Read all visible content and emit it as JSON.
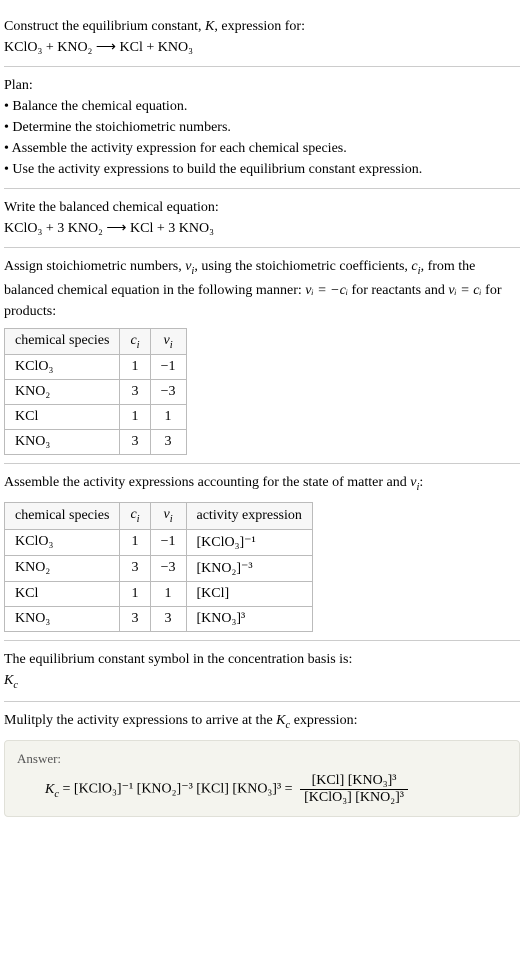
{
  "header": {
    "line1": "Construct the equilibrium constant, ",
    "K": "K",
    "line1b": ", expression for:",
    "equation_lhs": "KClO",
    "equation": "KClO₃ + KNO₂  ⟶  KCl + KNO₃"
  },
  "plan": {
    "title": "Plan:",
    "items": [
      "• Balance the chemical equation.",
      "• Determine the stoichiometric numbers.",
      "• Assemble the activity expression for each chemical species.",
      "• Use the activity expressions to build the equilibrium constant expression."
    ]
  },
  "balanced": {
    "title": "Write the balanced chemical equation:",
    "equation": "KClO₃ + 3 KNO₂  ⟶  KCl + 3 KNO₃"
  },
  "stoich": {
    "intro1": "Assign stoichiometric numbers, ",
    "nu": "ν",
    "sub_i": "i",
    "intro2": ", using the stoichiometric coefficients, ",
    "c": "c",
    "intro3": ", from the balanced chemical equation in the following manner: ",
    "rel_react": "νᵢ = −cᵢ",
    "intro4": " for reactants and ",
    "rel_prod": "νᵢ = cᵢ",
    "intro5": " for products:",
    "table": {
      "headers": [
        "chemical species",
        "cᵢ",
        "νᵢ"
      ],
      "rows": [
        [
          "KClO₃",
          "1",
          "−1"
        ],
        [
          "KNO₂",
          "3",
          "−3"
        ],
        [
          "KCl",
          "1",
          "1"
        ],
        [
          "KNO₃",
          "3",
          "3"
        ]
      ],
      "col_widths": [
        "130px",
        "40px",
        "40px"
      ]
    }
  },
  "activity": {
    "intro": "Assemble the activity expressions accounting for the state of matter and νᵢ:",
    "table": {
      "headers": [
        "chemical species",
        "cᵢ",
        "νᵢ",
        "activity expression"
      ],
      "rows": [
        [
          "KClO₃",
          "1",
          "−1",
          "[KClO₃]⁻¹"
        ],
        [
          "KNO₂",
          "3",
          "−3",
          "[KNO₂]⁻³"
        ],
        [
          "KCl",
          "1",
          "1",
          "[KCl]"
        ],
        [
          "KNO₃",
          "3",
          "3",
          "[KNO₃]³"
        ]
      ],
      "col_widths": [
        "130px",
        "40px",
        "40px",
        "140px"
      ]
    }
  },
  "symbol": {
    "line1": "The equilibrium constant symbol in the concentration basis is:",
    "Kc": "K",
    "Kc_sub": "c"
  },
  "multiply": {
    "line": "Mulitply the activity expressions to arrive at the ",
    "Kc": "K",
    "Kc_sub": "c",
    "line2": " expression:"
  },
  "answer": {
    "label": "Answer:",
    "Kc": "K",
    "Kc_sub": "c",
    "lhs": " = [KClO₃]⁻¹ [KNO₂]⁻³ [KCl] [KNO₃]³ = ",
    "frac_num": "[KCl] [KNO₃]³",
    "frac_den": "[KClO₃] [KNO₂]³"
  },
  "style": {
    "background": "#ffffff",
    "text_color": "#000000",
    "border_color": "#cccccc",
    "table_border": "#bbbbbb",
    "answer_bg": "#f4f4ee",
    "answer_border": "#e0e0d8",
    "font_family": "Georgia, 'Times New Roman', serif",
    "font_size": 14
  }
}
